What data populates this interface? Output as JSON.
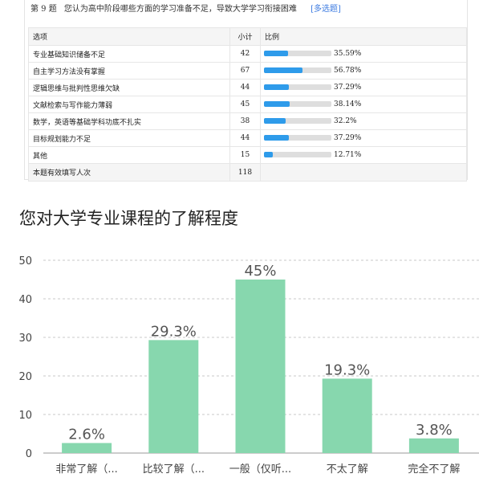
{
  "question": {
    "number": "第 9 题",
    "text": "您认为高中阶段哪些方面的学习准备不足，导致大学学习衔接困难",
    "tag": "[多选题]"
  },
  "table": {
    "headers": {
      "option": "选项",
      "count": "小计",
      "ratio": "比例"
    },
    "rows": [
      {
        "label": "专业基础知识储备不足",
        "count": "42",
        "pct_text": "35.59%",
        "pct": 35.59
      },
      {
        "label": "自主学习方法没有掌握",
        "count": "67",
        "pct_text": "56.78%",
        "pct": 56.78
      },
      {
        "label": "逻辑思维与批判性思维欠缺",
        "count": "44",
        "pct_text": "37.29%",
        "pct": 37.29
      },
      {
        "label": "文献检索与写作能力薄弱",
        "count": "45",
        "pct_text": "38.14%",
        "pct": 38.14
      },
      {
        "label": "数学，英语等基础学科功底不扎实",
        "count": "38",
        "pct_text": "32.2%",
        "pct": 32.2
      },
      {
        "label": "目标规划能力不足",
        "count": "44",
        "pct_text": "37.29%",
        "pct": 37.29
      },
      {
        "label": "其他",
        "count": "15",
        "pct_text": "12.71%",
        "pct": 12.71
      }
    ],
    "footer": {
      "label": "本题有效填写人次",
      "count": "118"
    },
    "bar_color": "#2e9bea"
  },
  "chart_data": {
    "type": "bar",
    "title": "您对大学专业课程的了解程度",
    "categories": [
      "非常了解（...",
      "比较了解（...",
      "一般（仅听...",
      "不太了解",
      "完全不了解"
    ],
    "values": [
      2.6,
      29.3,
      45,
      19.3,
      3.8
    ],
    "data_labels": [
      "2.6%",
      "29.3%",
      "45%",
      "19.3%",
      "3.8%"
    ],
    "yticks": [
      "0",
      "10",
      "20",
      "30",
      "40",
      "50"
    ],
    "ylim": [
      0,
      50
    ],
    "grid": true,
    "bar_color": "#87d7ae",
    "xlabel": "",
    "ylabel": ""
  }
}
